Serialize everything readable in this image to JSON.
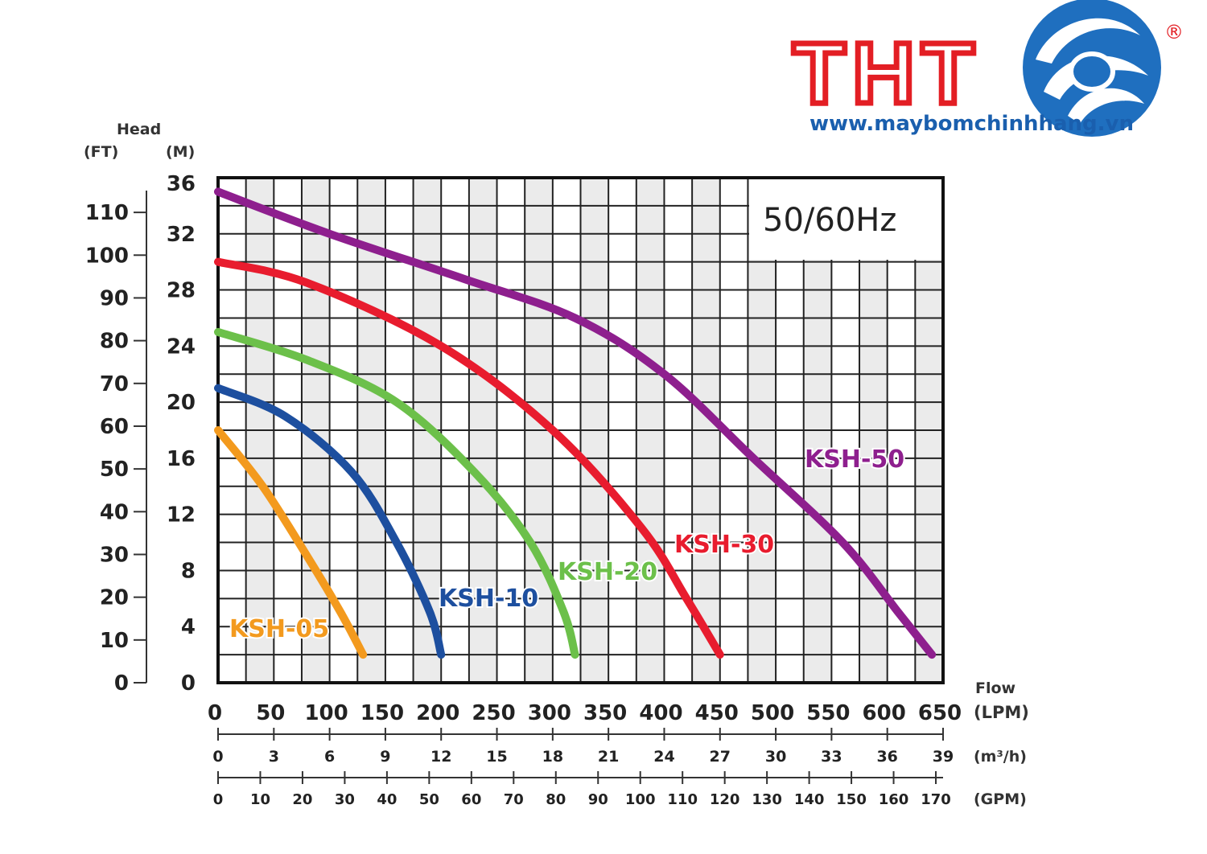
{
  "logo": {
    "brand": "THT",
    "registered": "®",
    "url": "www.maybomchinhhang.vn",
    "red": "#e31e24",
    "blue": "#1f6fbf"
  },
  "chart_data": {
    "type": "line",
    "title": "50/60Hz",
    "head_label": "Head",
    "head_ft_unit": "(FT)",
    "head_m_unit": "(M)",
    "flow_label": "Flow",
    "flow_lpm_unit": "(LPM)",
    "flow_m3h_unit": "(m³/h)",
    "flow_gpm_unit": "(GPM)",
    "ylim_m": [
      0,
      36
    ],
    "ylim_ft": [
      0,
      118.11
    ],
    "xlim_lpm": [
      0,
      650
    ],
    "ft_ticks": [
      "0",
      "10",
      "20",
      "30",
      "40",
      "50",
      "60",
      "70",
      "80",
      "90",
      "100",
      "110"
    ],
    "m_ticks": [
      "0",
      "4",
      "8",
      "12",
      "16",
      "20",
      "24",
      "28",
      "32",
      "36"
    ],
    "lpm_ticks": [
      "0",
      "50",
      "100",
      "150",
      "200",
      "250",
      "300",
      "350",
      "400",
      "450",
      "500",
      "550",
      "600",
      "650"
    ],
    "m3h_ticks": [
      "0",
      "3",
      "6",
      "9",
      "12",
      "15",
      "18",
      "21",
      "24",
      "27",
      "30",
      "33",
      "36",
      "39"
    ],
    "gpm_ticks": [
      "0",
      "10",
      "20",
      "30",
      "40",
      "50",
      "60",
      "70",
      "80",
      "90",
      "100",
      "110",
      "120",
      "130",
      "140",
      "150",
      "160",
      "170"
    ],
    "grid": true,
    "series": [
      {
        "name": "KSH-05",
        "color": "#f39a1e",
        "x": [
          0,
          40,
          80,
          110,
          130
        ],
        "y": [
          18,
          14,
          9,
          5,
          2
        ]
      },
      {
        "name": "KSH-10",
        "color": "#1d4f9f",
        "x": [
          0,
          60,
          120,
          160,
          190,
          200
        ],
        "y": [
          21,
          19,
          15,
          10,
          5,
          2
        ]
      },
      {
        "name": "KSH-20",
        "color": "#6cc04a",
        "x": [
          0,
          80,
          160,
          230,
          280,
          310,
          320
        ],
        "y": [
          25,
          23,
          20,
          15,
          10,
          5,
          2
        ]
      },
      {
        "name": "KSH-30",
        "color": "#e81c2e",
        "x": [
          0,
          80,
          200,
          300,
          380,
          420,
          450
        ],
        "y": [
          30,
          28.5,
          24,
          18,
          11,
          6,
          2
        ]
      },
      {
        "name": "KSH-50",
        "color": "#8e1f8e",
        "x": [
          0,
          100,
          220,
          320,
          400,
          480,
          560,
          610,
          640
        ],
        "y": [
          35,
          32,
          28.8,
          26,
          22,
          16,
          10,
          5,
          2
        ]
      }
    ]
  }
}
